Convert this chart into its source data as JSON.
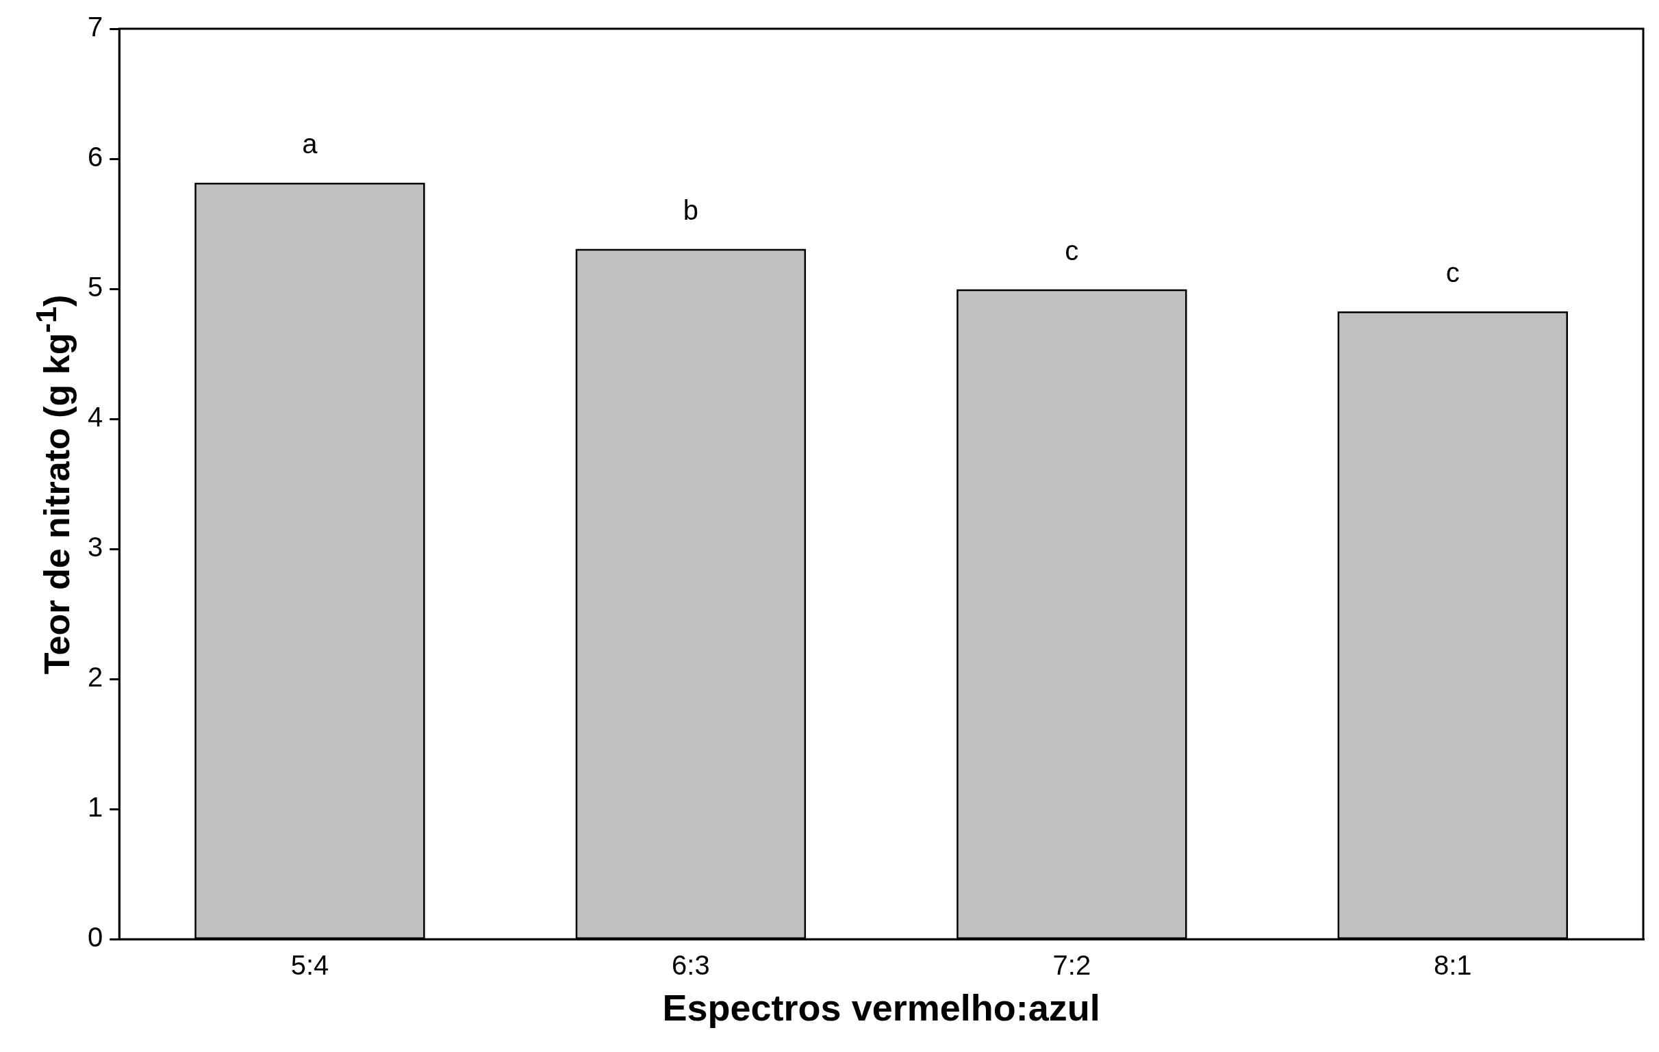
{
  "chart_data": {
    "type": "bar",
    "xlabel": "Espectros vermelho:azul",
    "ylabel": "Teor de nitrato (g kg$^{-1}$)",
    "categories": [
      "5:4",
      "6:3",
      "7:2",
      "8:1"
    ],
    "values": [
      5.81,
      5.3,
      4.99,
      4.82
    ],
    "color": "#c0c0c0",
    "ylim": [
      0,
      7
    ],
    "yticks": [
      0,
      1,
      2,
      3,
      4,
      5,
      6,
      7
    ],
    "grid": false,
    "legend": false,
    "annotations": [
      {
        "text": "a",
        "x": "5:4",
        "y": 5.81
      },
      {
        "text": "b",
        "x": "6:3",
        "y": 5.3
      },
      {
        "text": "c",
        "x": "7:2",
        "y": 4.99
      },
      {
        "text": "c",
        "x": "8:1",
        "y": 4.82
      }
    ]
  }
}
